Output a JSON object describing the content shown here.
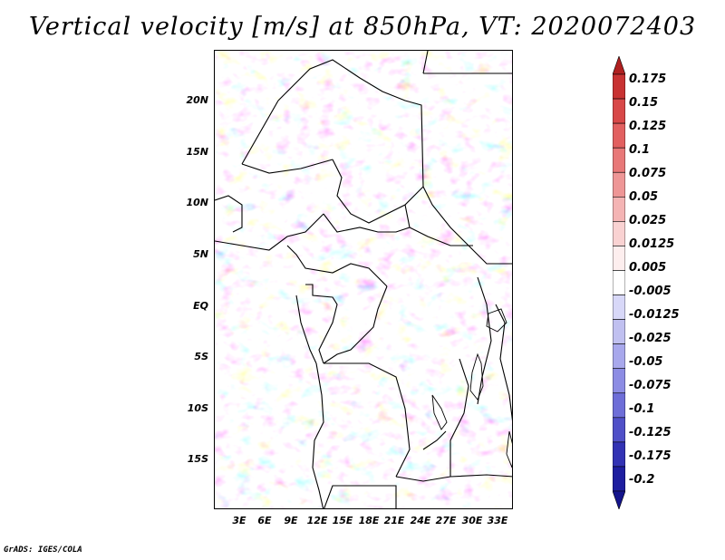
{
  "title": "Vertical velocity [m/s] at 850hPa, VT: 2020072403",
  "footer": "GrADS: IGES/COLA",
  "map": {
    "lat_labels": [
      "20N",
      "15N",
      "10N",
      "5N",
      "EQ",
      "5S",
      "10S",
      "15S"
    ],
    "lon_labels": [
      "3E",
      "6E",
      "9E",
      "12E",
      "15E",
      "18E",
      "21E",
      "24E",
      "27E",
      "30E",
      "33E"
    ]
  },
  "colorbar": {
    "labels": [
      "0.175",
      "0.15",
      "0.125",
      "0.1",
      "0.075",
      "0.05",
      "0.025",
      "0.0125",
      "0.005",
      "-0.005",
      "-0.0125",
      "-0.025",
      "-0.05",
      "-0.075",
      "-0.1",
      "-0.125",
      "-0.175",
      "-0.2"
    ],
    "colors": [
      "#b02020",
      "#c83232",
      "#d84848",
      "#e26060",
      "#e87878",
      "#ee9696",
      "#f4b4b4",
      "#f9d2d2",
      "#fdeeee",
      "#ffffff",
      "#d8d8f8",
      "#c0c0f0",
      "#a8a8ec",
      "#8c8ce4",
      "#6e6ed8",
      "#5050c8",
      "#3232b4",
      "#1e1ea0",
      "#14148c"
    ]
  }
}
